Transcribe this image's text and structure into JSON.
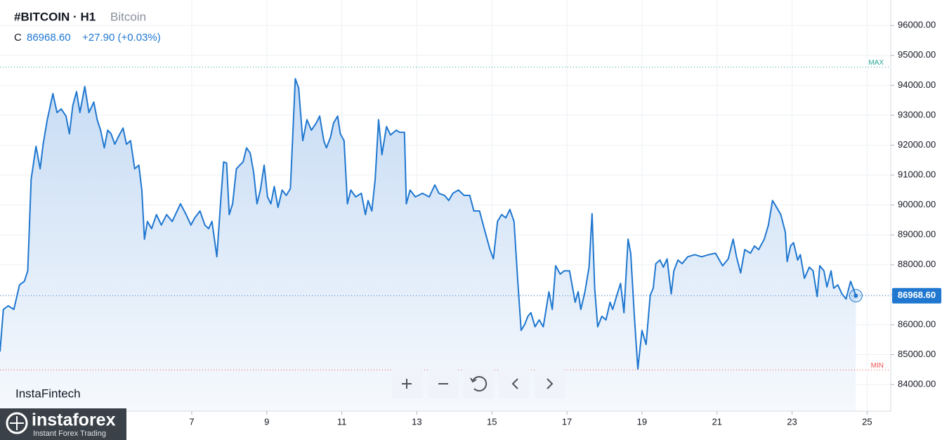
{
  "chart_data": {
    "type": "line",
    "title": "#BITCOIN · H1",
    "close_label": "C",
    "last_value_label": "86968.60",
    "change": "+27.90 (+0.03%)",
    "max_line": {
      "label": "MAX",
      "value": 94610
    },
    "min_line": {
      "label": "MIN",
      "value": 84490
    },
    "x": [
      1.89,
      1.98,
      2.11,
      2.26,
      2.41,
      2.54,
      2.63,
      2.72,
      2.85,
      2.96,
      3.04,
      3.15,
      3.3,
      3.41,
      3.52,
      3.65,
      3.74,
      3.83,
      3.93,
      4.02,
      4.15,
      4.26,
      4.39,
      4.48,
      4.57,
      4.67,
      4.76,
      4.85,
      4.95,
      5.04,
      5.17,
      5.26,
      5.37,
      5.48,
      5.59,
      5.67,
      5.74,
      5.82,
      5.93,
      6.06,
      6.19,
      6.33,
      6.48,
      6.61,
      6.7,
      6.85,
      6.98,
      7.08,
      7.22,
      7.35,
      7.45,
      7.54,
      7.67,
      7.78,
      7.85,
      7.93,
      8.0,
      8.09,
      8.19,
      8.28,
      8.37,
      8.46,
      8.56,
      8.65,
      8.74,
      8.83,
      8.93,
      9.02,
      9.11,
      9.2,
      9.3,
      9.41,
      9.52,
      9.63,
      9.76,
      9.85,
      9.96,
      10.07,
      10.19,
      10.32,
      10.41,
      10.52,
      10.59,
      10.7,
      10.78,
      10.89,
      10.96,
      11.06,
      11.15,
      11.24,
      11.37,
      11.52,
      11.63,
      11.7,
      11.8,
      11.89,
      11.98,
      12.07,
      12.19,
      12.3,
      12.45,
      12.54,
      12.67,
      12.72,
      12.82,
      12.96,
      13.15,
      13.33,
      13.48,
      13.59,
      13.74,
      13.85,
      13.96,
      14.11,
      14.26,
      14.41,
      14.52,
      14.67,
      14.82,
      14.95,
      15.04,
      15.15,
      15.26,
      15.37,
      15.48,
      15.59,
      15.69,
      15.78,
      15.87,
      15.96,
      16.04,
      16.15,
      16.26,
      16.37,
      16.52,
      16.61,
      16.7,
      16.82,
      16.93,
      17.07,
      17.22,
      17.3,
      17.37,
      17.48,
      17.59,
      17.67,
      17.74,
      17.82,
      17.93,
      18.04,
      18.15,
      18.22,
      18.33,
      18.43,
      18.52,
      18.63,
      18.7,
      18.8,
      18.89,
      19.0,
      19.11,
      19.22,
      19.3,
      19.37,
      19.48,
      19.57,
      19.67,
      19.78,
      19.85,
      19.96,
      20.07,
      20.22,
      20.41,
      20.59,
      20.78,
      20.96,
      21.15,
      21.3,
      21.43,
      21.52,
      21.63,
      21.74,
      21.89,
      22.0,
      22.11,
      22.26,
      22.37,
      22.48,
      22.59,
      22.7,
      22.82,
      22.87,
      22.96,
      23.04,
      23.15,
      23.22,
      23.33,
      23.46,
      23.56,
      23.67,
      23.74,
      23.85,
      23.93,
      24.04,
      24.11,
      24.22,
      24.33,
      24.44,
      24.56,
      24.63,
      24.7
    ],
    "series": [
      {
        "name": "Bitcoin",
        "color": "#1f77d0",
        "values": [
          85100,
          86510,
          86630,
          86510,
          87330,
          87450,
          87800,
          90860,
          91960,
          91210,
          92030,
          92850,
          93720,
          93090,
          93210,
          92970,
          92380,
          93320,
          93790,
          93090,
          93960,
          93090,
          93440,
          92850,
          92500,
          91910,
          92500,
          92380,
          92030,
          92270,
          92570,
          92030,
          92150,
          91210,
          91330,
          90500,
          88860,
          89450,
          89210,
          89680,
          89330,
          89680,
          89450,
          89800,
          90040,
          89680,
          89330,
          89570,
          89800,
          89330,
          89210,
          89450,
          88270,
          90270,
          91440,
          91400,
          89680,
          90040,
          91210,
          91330,
          91440,
          91910,
          91730,
          91090,
          90040,
          90500,
          91330,
          90270,
          90040,
          90620,
          89920,
          90500,
          90320,
          90550,
          94220,
          93910,
          92150,
          92850,
          92500,
          92740,
          92970,
          92150,
          91910,
          92270,
          92740,
          92970,
          92380,
          92150,
          90040,
          90500,
          90270,
          90390,
          89680,
          90150,
          89800,
          90860,
          92850,
          91680,
          92620,
          92340,
          92500,
          92430,
          92430,
          90040,
          90500,
          90270,
          90390,
          90270,
          90670,
          90390,
          90320,
          90150,
          90390,
          90500,
          90320,
          90320,
          89800,
          89800,
          89100,
          88510,
          88200,
          89450,
          89680,
          89570,
          89850,
          89450,
          87450,
          85810,
          86000,
          86280,
          86400,
          85930,
          86160,
          85930,
          87100,
          86510,
          87970,
          87690,
          87800,
          87800,
          86750,
          87100,
          86510,
          87100,
          87920,
          89710,
          87220,
          85930,
          86280,
          86160,
          86750,
          86510,
          86980,
          87380,
          86400,
          88860,
          88390,
          86230,
          84520,
          85810,
          85340,
          86980,
          87220,
          88040,
          88160,
          87920,
          88200,
          87030,
          87800,
          88160,
          88040,
          88270,
          88340,
          88270,
          88340,
          88390,
          87970,
          88200,
          88860,
          88270,
          87730,
          88510,
          88390,
          88630,
          88510,
          88860,
          89330,
          90150,
          89920,
          89680,
          89100,
          88110,
          88630,
          88740,
          88160,
          88340,
          87550,
          87920,
          87800,
          86940,
          87970,
          87800,
          87260,
          87800,
          87220,
          87330,
          87030,
          86860,
          87450,
          87220,
          86968.6
        ]
      }
    ],
    "xlim": [
      1.89,
      25.63
    ],
    "xticks": [
      7,
      9,
      11,
      13,
      15,
      17,
      19,
      21,
      23,
      25
    ],
    "ylim": [
      83110,
      96850
    ],
    "yticks": [
      {
        "value": 84000,
        "label": "84000.00"
      },
      {
        "value": 85000,
        "label": "85000.00"
      },
      {
        "value": 86000,
        "label": "86000.00"
      },
      {
        "value": 87000,
        "label": "87000.00"
      },
      {
        "value": 88000,
        "label": "88000.00"
      },
      {
        "value": 89000,
        "label": "89000.00"
      },
      {
        "value": 90000,
        "label": "90000.00"
      },
      {
        "value": 91000,
        "label": "91000.00"
      },
      {
        "value": 92000,
        "label": "92000.00"
      },
      {
        "value": 93000,
        "label": "93000.00"
      },
      {
        "value": 94000,
        "label": "94000.00"
      },
      {
        "value": 95000,
        "label": "95000.00"
      },
      {
        "value": 96000,
        "label": "96000.00"
      }
    ],
    "grid": true
  },
  "brand": {
    "fintech": "InstaFintech",
    "name": "instaforex",
    "tagline": "Instant Forex Trading"
  }
}
